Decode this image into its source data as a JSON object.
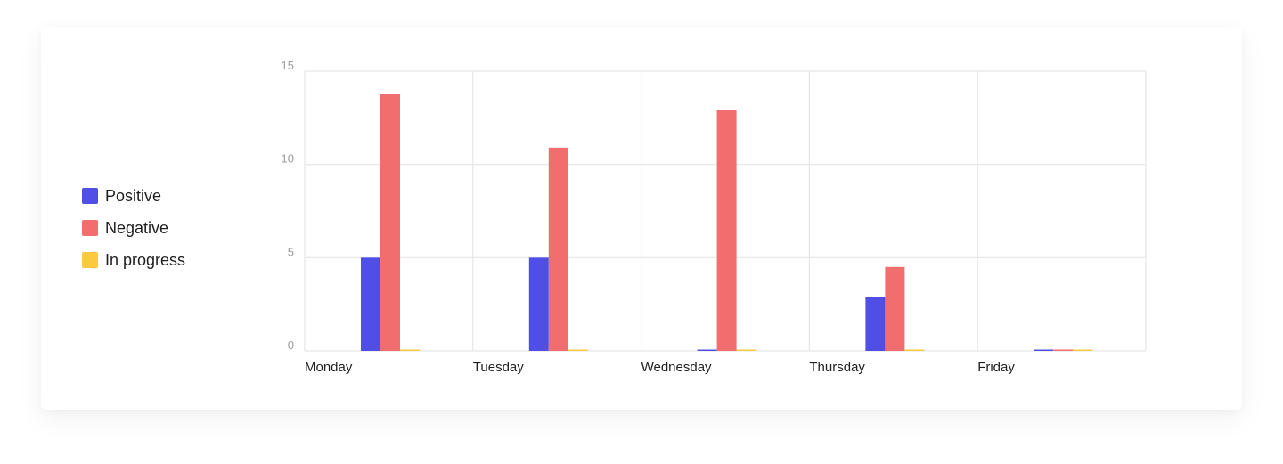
{
  "chart_data": {
    "type": "bar",
    "categories": [
      "Monday",
      "Tuesday",
      "Wednesday",
      "Thursday",
      "Friday"
    ],
    "series": [
      {
        "name": "Positive",
        "color": "#4f4fe6",
        "values": [
          5,
          5,
          0,
          2.9,
          0
        ]
      },
      {
        "name": "Negative",
        "color": "#f26d6d",
        "values": [
          13.8,
          10.9,
          12.9,
          4.5,
          0
        ]
      },
      {
        "name": "In progress",
        "color": "#fbc93d",
        "values": [
          0,
          0,
          0,
          0,
          0
        ]
      }
    ],
    "yticks": [
      "0",
      "5",
      "10",
      "15"
    ],
    "ylim": [
      0,
      15
    ],
    "grid": true,
    "legend_position": "left",
    "title": "",
    "xlabel": "",
    "ylabel": ""
  }
}
